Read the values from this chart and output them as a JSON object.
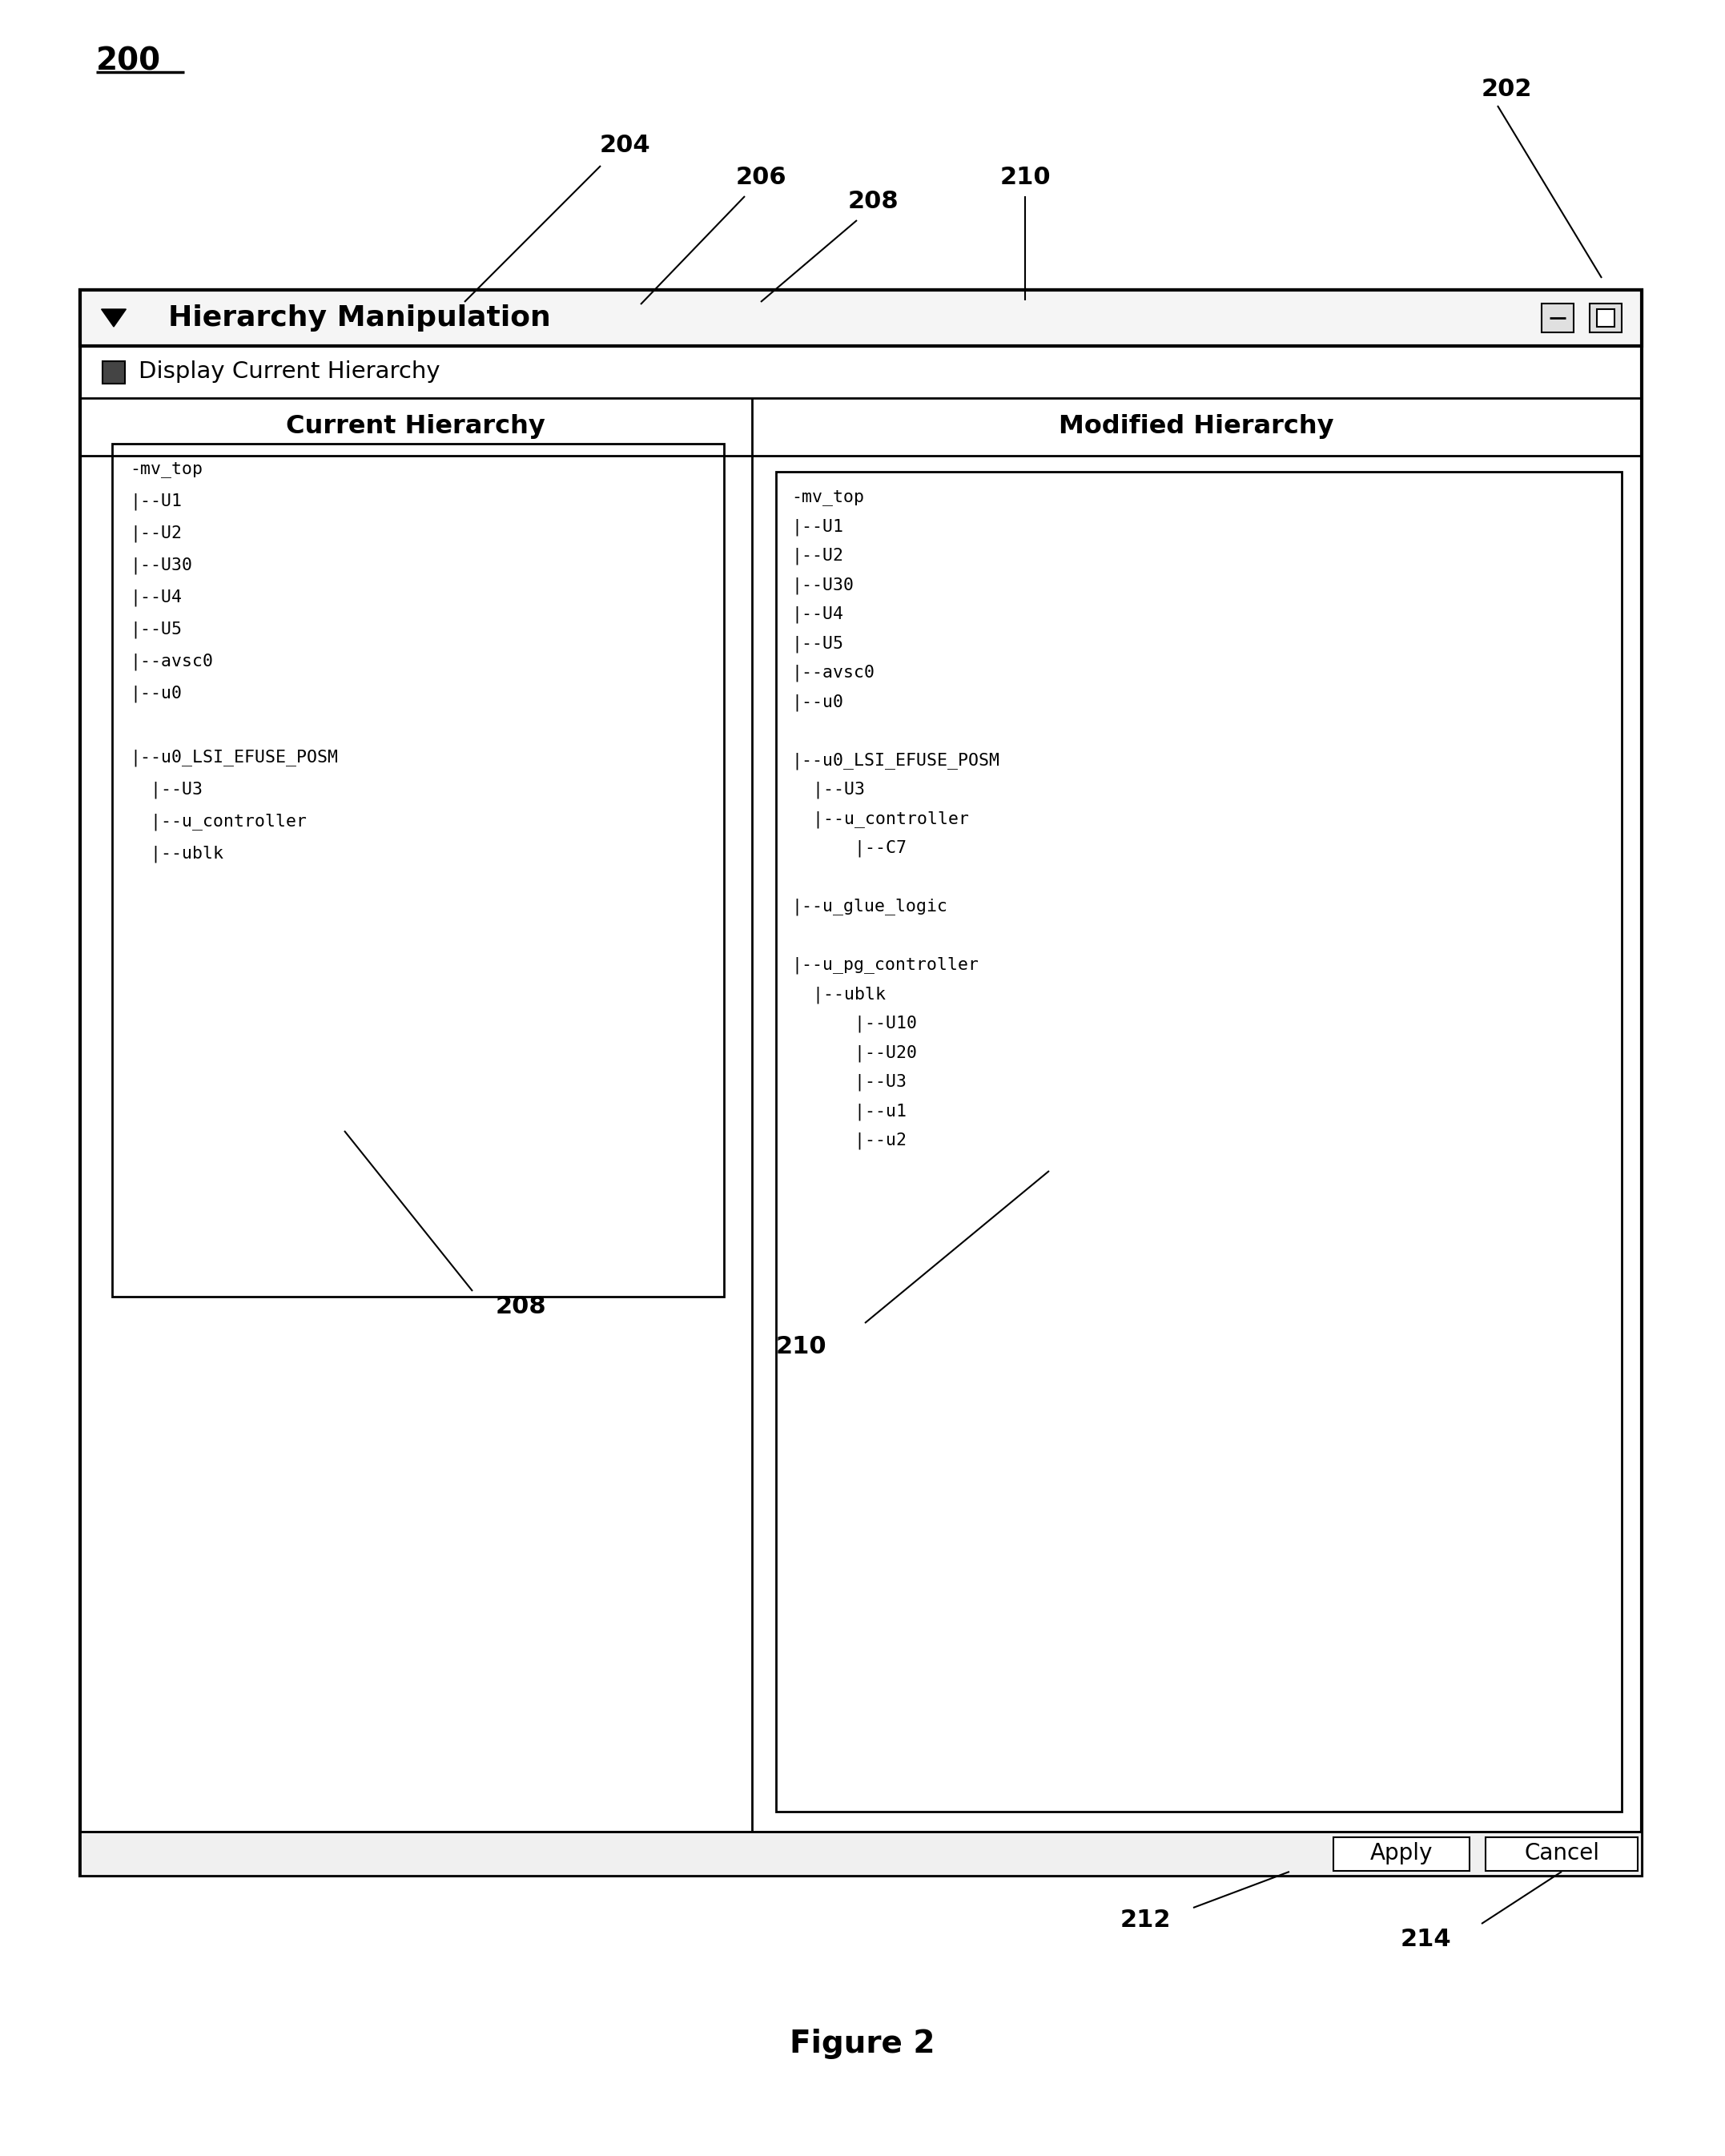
{
  "window_title": "Hierarchy Manipulation",
  "checkbox_label": "Display Current Hierarchy",
  "left_panel_title": "Current Hierarchy",
  "right_panel_title": "Modified Hierarchy",
  "label_200": "200",
  "label_202": "202",
  "label_204": "204",
  "label_206": "206",
  "label_208": "208",
  "label_210": "210",
  "label_212": "212",
  "label_214": "214",
  "figure_caption": "Figure 2",
  "bg_color": "#ffffff",
  "left_tree": [
    [
      "-mv_top",
      0
    ],
    [
      "|--U1",
      1
    ],
    [
      "|--U2",
      1
    ],
    [
      "|--U30",
      1
    ],
    [
      "|--U4",
      1
    ],
    [
      "|--U5",
      1
    ],
    [
      "|--avsc0",
      1
    ],
    [
      "|--u0",
      1
    ],
    [
      "",
      0
    ],
    [
      "|--u0_LSI_EFUSE_POSM",
      0
    ],
    [
      "  |--U3",
      1
    ],
    [
      "  |--u_controller",
      1
    ],
    [
      "  |--ublk",
      1
    ]
  ],
  "right_tree": [
    [
      "-mv_top",
      0
    ],
    [
      "|--U1",
      1
    ],
    [
      "|--U2",
      1
    ],
    [
      "|--U30",
      1
    ],
    [
      "|--U4",
      1
    ],
    [
      "|--U5",
      1
    ],
    [
      "|--avsc0",
      1
    ],
    [
      "|--u0",
      1
    ],
    [
      "",
      0
    ],
    [
      "|--u0_LSI_EFUSE_POSM",
      0
    ],
    [
      "  |--U3",
      1
    ],
    [
      "  |--u_controller",
      1
    ],
    [
      "      |--C7",
      2
    ],
    [
      "",
      0
    ],
    [
      "|--u_glue_logic",
      0
    ],
    [
      "",
      0
    ],
    [
      "|--u_pg_controller",
      0
    ],
    [
      "  |--ublk",
      1
    ],
    [
      "      |--U10",
      2
    ],
    [
      "      |--U20",
      2
    ],
    [
      "      |--U3",
      2
    ],
    [
      "      |--u1",
      2
    ],
    [
      "      |--u2",
      2
    ]
  ]
}
